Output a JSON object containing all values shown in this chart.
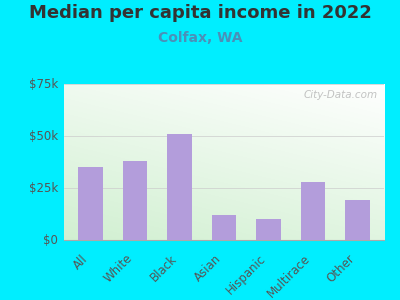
{
  "title": "Median per capita income in 2022",
  "subtitle": "Colfax, WA",
  "categories": [
    "All",
    "White",
    "Black",
    "Asian",
    "Hispanic",
    "Multirace",
    "Other"
  ],
  "values": [
    35000,
    38000,
    51000,
    12000,
    10000,
    28000,
    19000
  ],
  "bar_color": "#b39ddb",
  "background_outer": "#00eeff",
  "title_color": "#333333",
  "subtitle_color": "#4a90b8",
  "tick_label_color": "#555555",
  "ytick_label_color": "#555555",
  "ylim": [
    0,
    75000
  ],
  "yticks": [
    0,
    25000,
    50000,
    75000
  ],
  "ytick_labels": [
    "$0",
    "$25k",
    "$50k",
    "$75k"
  ],
  "watermark": "City-Data.com",
  "title_fontsize": 13,
  "subtitle_fontsize": 10,
  "tick_fontsize": 8.5,
  "ytick_fontsize": 8.5
}
